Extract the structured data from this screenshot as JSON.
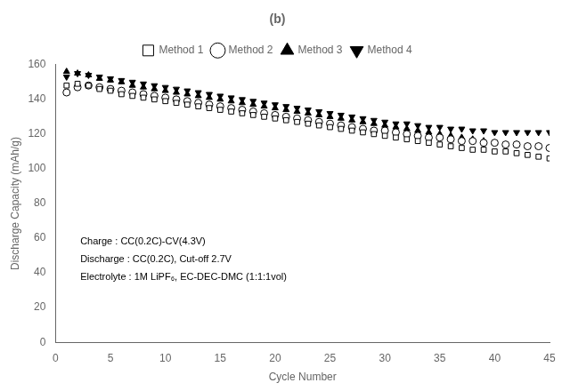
{
  "chart_data": {
    "type": "scatter",
    "title": "(b)",
    "x_label": "Cycle Number",
    "y_label": "Discharge Capacity (mAh/g)",
    "xlim": [
      0,
      45
    ],
    "ylim": [
      0,
      160
    ],
    "xticks": [
      0,
      5,
      10,
      15,
      20,
      25,
      30,
      35,
      40,
      45
    ],
    "yticks": [
      0,
      20,
      40,
      60,
      80,
      100,
      120,
      140,
      160
    ],
    "grid": false,
    "legend": "top",
    "annotations": [
      "Charge : CC(0.2C)-CV(4.3V)",
      "Discharge : CC(0.2C), Cut-off 2.7V",
      "Electrolyte : 1M LiPF₆, EC-DEC-DMC (1:1:1vol)"
    ],
    "series": [
      {
        "name": "Method 1",
        "color": "#000000",
        "marker": "square_open",
        "x": [
          1,
          2,
          3,
          4,
          5,
          6,
          7,
          8,
          9,
          10,
          11,
          12,
          13,
          14,
          15,
          16,
          17,
          18,
          19,
          20,
          21,
          22,
          23,
          24,
          25,
          26,
          27,
          28,
          29,
          30,
          31,
          32,
          33,
          34,
          35,
          36,
          37,
          38,
          39,
          40,
          41,
          42,
          43,
          44,
          45
        ],
        "values": [
          148,
          149,
          148,
          146,
          145,
          143,
          142,
          141,
          140,
          139,
          138,
          137,
          136,
          135,
          134,
          133,
          132,
          131,
          130,
          129,
          128,
          127,
          126,
          125,
          124,
          123,
          122,
          121,
          120,
          119,
          118,
          117,
          116,
          115,
          114,
          113,
          112,
          111,
          111,
          110,
          110,
          109,
          108,
          107,
          106
        ]
      },
      {
        "name": "Method 2",
        "color": "#000000",
        "marker": "circle_open",
        "x": [
          1,
          2,
          3,
          4,
          5,
          6,
          7,
          8,
          9,
          10,
          11,
          12,
          13,
          14,
          15,
          16,
          17,
          18,
          19,
          20,
          21,
          22,
          23,
          24,
          25,
          26,
          27,
          28,
          29,
          30,
          31,
          32,
          33,
          34,
          35,
          36,
          37,
          38,
          39,
          40,
          41,
          42,
          43,
          44,
          45
        ],
        "values": [
          144,
          147,
          148,
          147,
          146,
          145,
          144,
          143,
          142,
          141,
          140,
          139,
          138,
          137,
          136,
          135,
          134,
          133,
          132,
          131,
          130,
          129,
          128,
          127,
          126,
          125,
          124,
          123,
          122,
          122,
          121,
          120,
          119,
          118,
          118,
          117,
          116,
          116,
          115,
          115,
          114,
          114,
          113,
          113,
          112
        ]
      },
      {
        "name": "Method 3",
        "color": "#000000",
        "marker": "triangle_up",
        "x": [
          1,
          2,
          3,
          4,
          5,
          6,
          7,
          8,
          9,
          10,
          11,
          12,
          13,
          14,
          15,
          16,
          17,
          18,
          19,
          20,
          21,
          22,
          23,
          24,
          25,
          26,
          27,
          28,
          29,
          30,
          31,
          32,
          33,
          34,
          35,
          36,
          37,
          38,
          39,
          40,
          41,
          42,
          43,
          44,
          45
        ],
        "values": [
          156,
          155,
          154,
          152,
          151,
          150,
          148,
          147,
          146,
          145,
          144,
          143,
          142,
          141,
          140,
          139,
          138,
          137,
          136,
          135,
          134,
          133,
          132,
          131,
          130,
          129,
          128,
          127,
          126,
          125,
          124,
          123,
          122,
          121,
          120,
          119,
          118,
          117,
          116,
          115,
          114,
          114,
          113,
          113,
          112
        ]
      },
      {
        "name": "Method 4",
        "color": "#000000",
        "marker": "triangle_down",
        "x": [
          1,
          2,
          3,
          4,
          5,
          6,
          7,
          8,
          9,
          10,
          11,
          12,
          13,
          14,
          15,
          16,
          17,
          18,
          19,
          20,
          21,
          22,
          23,
          24,
          25,
          26,
          27,
          28,
          29,
          30,
          31,
          32,
          33,
          34,
          35,
          36,
          37,
          38,
          39,
          40,
          41,
          42,
          43,
          44,
          45
        ],
        "values": [
          153,
          155,
          154,
          153,
          152,
          151,
          150,
          149,
          148,
          147,
          146,
          145,
          144,
          143,
          142,
          141,
          140,
          139,
          138,
          137,
          136,
          135,
          134,
          133,
          132,
          131,
          130,
          129,
          128,
          127,
          126,
          126,
          125,
          124,
          124,
          123,
          123,
          122,
          122,
          121,
          121,
          121,
          121,
          121,
          121
        ]
      }
    ]
  }
}
